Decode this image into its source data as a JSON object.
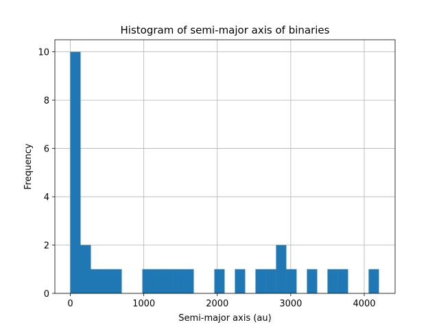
{
  "chart_data": {
    "type": "bar",
    "subtype": "histogram",
    "title": "Histogram of semi-major axis of binaries",
    "xlabel": "Semi-major axis (au)",
    "ylabel": "Frequency",
    "xlim": [
      -210,
      4420
    ],
    "ylim": [
      0,
      10.5
    ],
    "xticks": [
      0,
      1000,
      2000,
      3000,
      4000
    ],
    "xtick_labels": [
      "0",
      "1000",
      "2000",
      "3000",
      "4000"
    ],
    "yticks": [
      0,
      2,
      4,
      6,
      8,
      10
    ],
    "ytick_labels": [
      "0",
      "2",
      "4",
      "6",
      "8",
      "10"
    ],
    "grid": true,
    "color": "#1f77b4",
    "bin_width": 140,
    "bins": [
      {
        "start": 0,
        "end": 140,
        "count": 10
      },
      {
        "start": 140,
        "end": 280,
        "count": 2
      },
      {
        "start": 280,
        "end": 420,
        "count": 1
      },
      {
        "start": 420,
        "end": 560,
        "count": 1
      },
      {
        "start": 560,
        "end": 700,
        "count": 1
      },
      {
        "start": 700,
        "end": 840,
        "count": 0
      },
      {
        "start": 840,
        "end": 980,
        "count": 0
      },
      {
        "start": 980,
        "end": 1120,
        "count": 1
      },
      {
        "start": 1120,
        "end": 1260,
        "count": 1
      },
      {
        "start": 1260,
        "end": 1400,
        "count": 1
      },
      {
        "start": 1400,
        "end": 1540,
        "count": 1
      },
      {
        "start": 1540,
        "end": 1680,
        "count": 1
      },
      {
        "start": 1680,
        "end": 1820,
        "count": 0
      },
      {
        "start": 1820,
        "end": 1960,
        "count": 0
      },
      {
        "start": 1960,
        "end": 2100,
        "count": 1
      },
      {
        "start": 2100,
        "end": 2240,
        "count": 0
      },
      {
        "start": 2240,
        "end": 2380,
        "count": 1
      },
      {
        "start": 2380,
        "end": 2520,
        "count": 0
      },
      {
        "start": 2520,
        "end": 2660,
        "count": 1
      },
      {
        "start": 2660,
        "end": 2800,
        "count": 1
      },
      {
        "start": 2800,
        "end": 2940,
        "count": 2
      },
      {
        "start": 2940,
        "end": 3080,
        "count": 1
      },
      {
        "start": 3080,
        "end": 3220,
        "count": 0
      },
      {
        "start": 3220,
        "end": 3360,
        "count": 1
      },
      {
        "start": 3360,
        "end": 3500,
        "count": 0
      },
      {
        "start": 3500,
        "end": 3640,
        "count": 1
      },
      {
        "start": 3640,
        "end": 3780,
        "count": 1
      },
      {
        "start": 3780,
        "end": 3920,
        "count": 0
      },
      {
        "start": 3920,
        "end": 4060,
        "count": 0
      },
      {
        "start": 4060,
        "end": 4200,
        "count": 1
      }
    ]
  }
}
